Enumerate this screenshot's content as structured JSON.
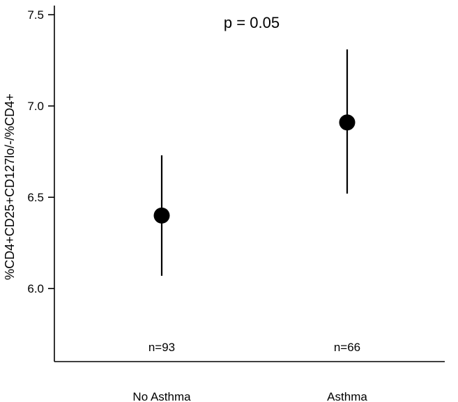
{
  "chart_data": {
    "type": "scatter",
    "subtype": "mean-with-error-bars",
    "title": "",
    "annotation": "p = 0.05",
    "xlabel": "",
    "ylabel": "%CD4+CD25+CD127lo/-/%CD4+",
    "ylim": [
      5.6,
      7.55
    ],
    "yticks": [
      6.0,
      6.5,
      7.0,
      7.5
    ],
    "ytick_labels": [
      "6.0",
      "6.5",
      "7.0",
      "7.5"
    ],
    "grid": false,
    "legend": "none",
    "categories": [
      "No Asthma",
      "Asthma"
    ],
    "points": [
      {
        "category": "No Asthma",
        "mean": 6.4,
        "lower": 6.07,
        "upper": 6.73,
        "n_label": "n=93"
      },
      {
        "category": "Asthma",
        "mean": 6.91,
        "lower": 6.52,
        "upper": 7.31,
        "n_label": "n=66"
      }
    ],
    "colors": {
      "marker": "#000000",
      "axis": "#000000"
    }
  }
}
